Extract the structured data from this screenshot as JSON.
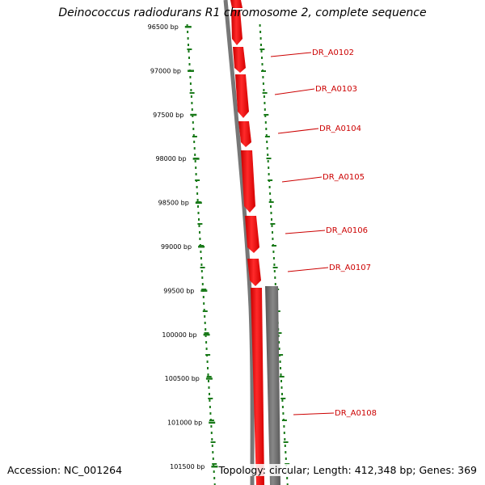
{
  "title": "Deinococcus radiodurans R1 chromosome 2, complete sequence",
  "footer": {
    "accession": "Accession: NC_001264",
    "summary": "Topology: circular; Length: 412,348 bp; Genes: 369"
  },
  "colors": {
    "gene_forward": "#ff0000",
    "gene_reverse": "#666666",
    "backbone": "#777777",
    "ruler": "#1a7a1a",
    "label": "#cc0000"
  },
  "ruler_labels": [
    "96500 bp",
    "97000 bp",
    "97500 bp",
    "98000 bp",
    "98500 bp",
    "99000 bp",
    "99500 bp",
    "100000 bp",
    "100500 bp",
    "101000 bp",
    "101500 bp"
  ],
  "genes": [
    {
      "label": "DR_A0102"
    },
    {
      "label": "DR_A0103"
    },
    {
      "label": "DR_A0104"
    },
    {
      "label": "DR_A0105"
    },
    {
      "label": "DR_A0106"
    },
    {
      "label": "DR_A0107"
    },
    {
      "label": "DR_A0108"
    }
  ]
}
